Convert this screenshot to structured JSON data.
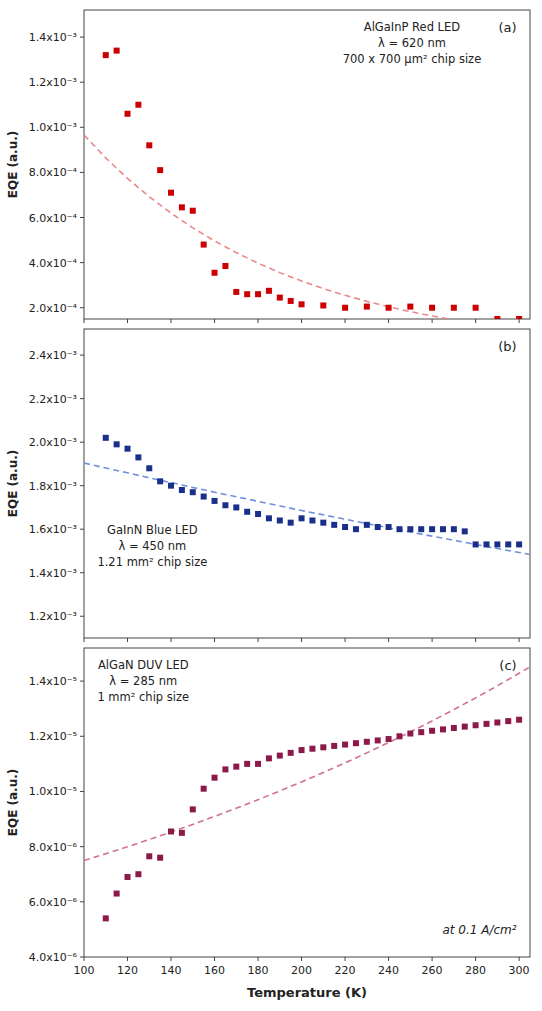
{
  "chart_data": [
    {
      "type": "scatter",
      "title": "(a)",
      "annotations": [
        [
          "AlGaInP Red LED",
          "λ = 620 nm",
          "700 x 700 μm² chip size"
        ]
      ],
      "ylabel": "EQE (a.u.)",
      "xlim": [
        100,
        305
      ],
      "xticks": [
        100,
        120,
        140,
        160,
        180,
        200,
        220,
        240,
        260,
        280,
        300
      ],
      "ylim": [
        0.00015,
        0.00152
      ],
      "yticks": [
        {
          "value": 0.0002,
          "label": "2.0x10⁻⁴"
        },
        {
          "value": 0.0004,
          "label": "4.0x10⁻⁴"
        },
        {
          "value": 0.0006,
          "label": "6.0x10⁻⁴"
        },
        {
          "value": 0.0008,
          "label": "8.0x10⁻⁴"
        },
        {
          "value": 0.001,
          "label": "1.0x10⁻³"
        },
        {
          "value": 0.0012,
          "label": "1.2x10⁻³"
        },
        {
          "value": 0.0014,
          "label": "1.4x10⁻³"
        }
      ],
      "grid": false,
      "tick_labels": "y",
      "series": [
        {
          "type": "scatter",
          "marker": "square",
          "color": "#CC0000",
          "x": [
            110,
            115,
            120,
            125,
            130,
            135,
            140,
            145,
            150,
            155,
            160,
            165,
            170,
            175,
            180,
            185,
            190,
            195,
            200,
            210,
            220,
            230,
            240,
            250,
            260,
            270,
            280,
            290,
            300
          ],
          "values": [
            0.00132,
            0.00134,
            0.00106,
            0.0011,
            0.00092,
            0.00081,
            0.00071,
            0.000645,
            0.00063,
            0.00048,
            0.000355,
            0.000385,
            0.00027,
            0.00026,
            0.00026,
            0.000275,
            0.000245,
            0.00023,
            0.000215,
            0.00021,
            0.0002,
            0.000205,
            0.0002,
            0.000205,
            0.0002,
            0.0002,
            0.0002,
            0.00015,
            0.00015
          ]
        },
        {
          "type": "line",
          "line_style": "dashed",
          "color": "#E88888",
          "x": [
            100,
            110,
            120,
            130,
            140,
            150,
            160,
            170,
            180,
            190,
            200,
            210,
            220,
            230,
            240,
            250,
            260,
            267.8
          ],
          "values": [
            0.0009655,
            0.0008641,
            0.0007733,
            0.0006921,
            0.0006194,
            0.0005543,
            0.0004961,
            0.000444,
            0.0003974,
            0.0003556,
            0.0003183,
            0.0002848,
            0.0002549,
            0.0002281,
            0.0002042,
            0.0001827,
            0.0001635,
            0.00015
          ]
        }
      ]
    },
    {
      "type": "scatter",
      "title": "(b)",
      "annotations": [
        [
          "GaInN Blue LED",
          "λ = 450 nm",
          "1.21 mm² chip size"
        ]
      ],
      "ylabel": "EQE (a.u.)",
      "xlim": [
        100,
        305
      ],
      "xticks": [
        100,
        120,
        140,
        160,
        180,
        200,
        220,
        240,
        260,
        280,
        300
      ],
      "ylim": [
        0.0011,
        0.00252
      ],
      "yticks": [
        {
          "value": 0.0012,
          "label": "1.2x10⁻³"
        },
        {
          "value": 0.0014,
          "label": "1.4x10⁻³"
        },
        {
          "value": 0.0016,
          "label": "1.6x10⁻³"
        },
        {
          "value": 0.0018,
          "label": "1.8x10⁻³"
        },
        {
          "value": 0.002,
          "label": "2.0x10⁻³"
        },
        {
          "value": 0.0022,
          "label": "2.2x10⁻³"
        },
        {
          "value": 0.0024,
          "label": "2.4x10⁻³"
        }
      ],
      "grid": false,
      "tick_labels": "y",
      "series": [
        {
          "type": "scatter",
          "marker": "square",
          "color": "#1A2F8A",
          "x": [
            110,
            115,
            120,
            125,
            130,
            135,
            140,
            145,
            150,
            155,
            160,
            165,
            170,
            175,
            180,
            185,
            190,
            195,
            200,
            205,
            210,
            215,
            220,
            225,
            230,
            235,
            240,
            245,
            250,
            255,
            260,
            265,
            270,
            275,
            280,
            285,
            290,
            295,
            300
          ],
          "values": [
            0.00202,
            0.00199,
            0.00197,
            0.00193,
            0.00188,
            0.00182,
            0.0018,
            0.00178,
            0.00177,
            0.00175,
            0.00173,
            0.00171,
            0.0017,
            0.00168,
            0.00167,
            0.00165,
            0.00164,
            0.00163,
            0.00165,
            0.00164,
            0.00163,
            0.00162,
            0.00161,
            0.0016,
            0.00162,
            0.00161,
            0.00161,
            0.0016,
            0.0016,
            0.0016,
            0.0016,
            0.0016,
            0.0016,
            0.00159,
            0.00153,
            0.00153,
            0.00153,
            0.00153,
            0.00153
          ]
        },
        {
          "type": "line",
          "line_style": "dashed",
          "color": "#7090DD",
          "x": [
            100,
            110,
            120,
            130,
            140,
            150,
            160,
            170,
            180,
            190,
            200,
            210,
            220,
            230,
            240,
            250,
            260,
            270,
            280,
            290,
            300,
            305
          ],
          "values": [
            0.001904,
            0.001881,
            0.001859,
            0.001836,
            0.001814,
            0.001792,
            0.00177,
            0.001749,
            0.001728,
            0.001707,
            0.001686,
            0.001666,
            0.001646,
            0.001626,
            0.001606,
            0.001587,
            0.001568,
            0.001549,
            0.00153,
            0.001511,
            0.001493,
            0.001484
          ]
        }
      ]
    },
    {
      "type": "scatter",
      "title": "(c)",
      "annotations": [
        [
          "AlGaN DUV LED",
          "λ = 285 nm",
          "1 mm² chip size"
        ],
        [
          "at 0.1 A/cm²"
        ]
      ],
      "xlabel": "Temperature (K)",
      "ylabel": "EQE (a.u.)",
      "xlim": [
        100,
        305
      ],
      "xticks": [
        100,
        120,
        140,
        160,
        180,
        200,
        220,
        240,
        260,
        280,
        300
      ],
      "ylim": [
        4e-06,
        1.52e-05
      ],
      "yticks": [
        {
          "value": 4e-06,
          "label": "4.0x10⁻⁶"
        },
        {
          "value": 6e-06,
          "label": "6.0x10⁻⁶"
        },
        {
          "value": 8e-06,
          "label": "8.0x10⁻⁶"
        },
        {
          "value": 1e-05,
          "label": "1.0x10⁻⁵"
        },
        {
          "value": 1.2e-05,
          "label": "1.2x10⁻⁵"
        },
        {
          "value": 1.4e-05,
          "label": "1.4x10⁻⁵"
        }
      ],
      "grid": false,
      "series": [
        {
          "type": "scatter",
          "marker": "square",
          "color": "#8B1A4A",
          "x": [
            110,
            115,
            120,
            125,
            130,
            135,
            140,
            145,
            150,
            155,
            160,
            165,
            170,
            175,
            180,
            185,
            190,
            195,
            200,
            205,
            210,
            215,
            220,
            225,
            230,
            235,
            240,
            245,
            250,
            255,
            260,
            265,
            270,
            275,
            280,
            285,
            290,
            295,
            300
          ],
          "values": [
            5.4e-06,
            6.3e-06,
            6.9e-06,
            7e-06,
            7.65e-06,
            7.6e-06,
            8.55e-06,
            8.5e-06,
            9.35e-06,
            1.01e-05,
            1.05e-05,
            1.08e-05,
            1.09e-05,
            1.1e-05,
            1.1e-05,
            1.12e-05,
            1.13e-05,
            1.14e-05,
            1.15e-05,
            1.155e-05,
            1.16e-05,
            1.165e-05,
            1.17e-05,
            1.175e-05,
            1.18e-05,
            1.185e-05,
            1.19e-05,
            1.2e-05,
            1.21e-05,
            1.215e-05,
            1.22e-05,
            1.225e-05,
            1.23e-05,
            1.235e-05,
            1.24e-05,
            1.245e-05,
            1.25e-05,
            1.255e-05,
            1.26e-05
          ]
        },
        {
          "type": "line",
          "line_style": "dashed",
          "color": "#D07090",
          "x": [
            100,
            110,
            120,
            130,
            140,
            150,
            160,
            170,
            180,
            190,
            200,
            210,
            220,
            230,
            240,
            250,
            260,
            270,
            280,
            290,
            300,
            305
          ],
          "values": [
            7.496e-06,
            7.741e-06,
            7.995e-06,
            8.257e-06,
            8.527e-06,
            8.807e-06,
            9.095e-06,
            9.393e-06,
            9.701e-06,
            1.0019e-05,
            1.0347e-05,
            1.0686e-05,
            1.1036e-05,
            1.1398e-05,
            1.1771e-05,
            1.2157e-05,
            1.2555e-05,
            1.2967e-05,
            1.3391e-05,
            1.383e-05,
            1.4283e-05,
            1.4516e-05
          ]
        }
      ]
    }
  ]
}
